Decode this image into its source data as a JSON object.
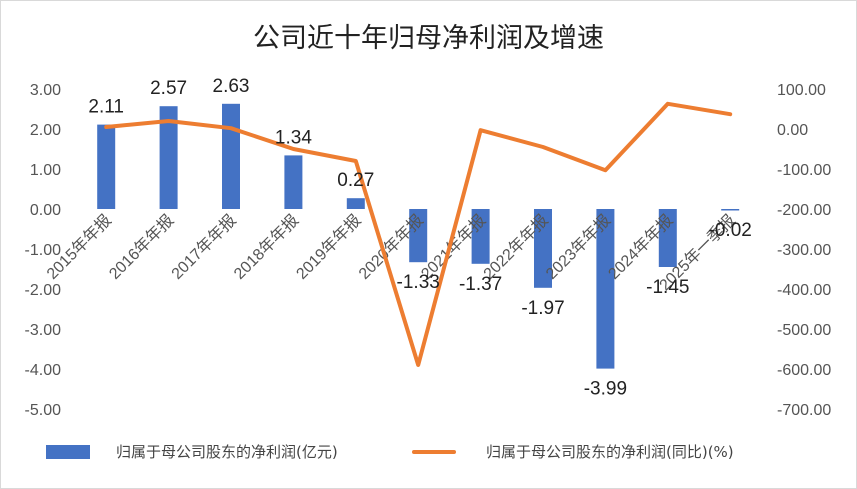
{
  "title": "公司近十年归母净利润及增速",
  "chart_data": {
    "type": "bar",
    "title": "公司近十年归母净利润及增速",
    "categories": [
      "2015年年报",
      "2016年年报",
      "2017年年报",
      "2018年年报",
      "2019年年报",
      "2020年年报",
      "2021年年报",
      "2022年年报",
      "2023年年报",
      "2024年年报",
      "2025年一季报"
    ],
    "series": [
      {
        "name": "归属于母公司股东的净利润(亿元)",
        "type": "bar",
        "axis": "left",
        "color": "#4472c4",
        "values": [
          2.11,
          2.57,
          2.63,
          1.34,
          0.27,
          -1.33,
          -1.37,
          -1.97,
          -3.99,
          -1.45,
          -0.02
        ],
        "data_labels": [
          "2.11",
          "2.57",
          "2.63",
          "1.34",
          "0.27",
          "-1.33",
          "-1.37",
          "-1.97",
          "-3.99",
          "-1.45",
          "-0.02"
        ]
      },
      {
        "name": "归属于母公司股东的净利润(同比)(%)",
        "type": "line",
        "axis": "right",
        "color": "#ed7d31",
        "values": [
          5,
          20,
          2,
          -50,
          -80,
          -590,
          -3,
          -45,
          -103,
          63,
          37
        ]
      }
    ],
    "y_left": {
      "ylim": [
        -5,
        3
      ],
      "ticks": [
        3,
        2,
        1,
        0,
        -1,
        -2,
        -3,
        -4,
        -5
      ],
      "tick_labels": [
        "3.00",
        "2.00",
        "1.00",
        "0.00",
        "-1.00",
        "-2.00",
        "-3.00",
        "-4.00",
        "-5.00"
      ]
    },
    "y_right": {
      "ylim": [
        -700,
        100
      ],
      "ticks": [
        100,
        0,
        -100,
        -200,
        -300,
        -400,
        -500,
        -600,
        -700
      ],
      "tick_labels": [
        "100.00",
        "0.00",
        "-100.00",
        "-200.00",
        "-300.00",
        "-400.00",
        "-500.00",
        "-600.00",
        "-700.00"
      ]
    },
    "grid": false,
    "legend_position": "bottom"
  },
  "legend": {
    "bar_label": "归属于母公司股东的净利润(亿元)",
    "line_label": "归属于母公司股东的净利润(同比)(%)"
  }
}
